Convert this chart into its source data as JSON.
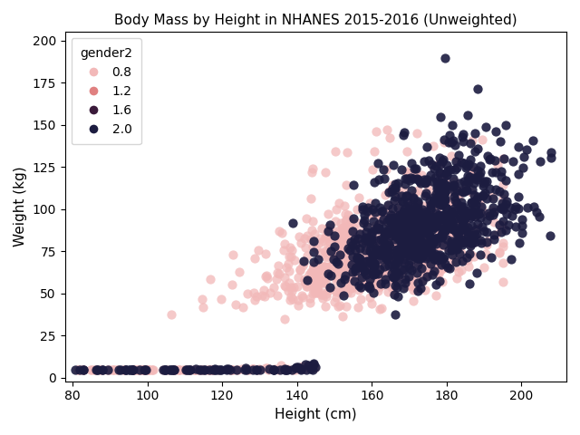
{
  "title": "Body Mass by Height in NHANES 2015-2016 (Unweighted)",
  "xlabel": "Height (cm)",
  "ylabel": "Weight (kg)",
  "xlim": [
    78,
    212
  ],
  "ylim": [
    -2,
    205
  ],
  "xticks": [
    80,
    100,
    120,
    140,
    160,
    180,
    200
  ],
  "yticks": [
    0,
    25,
    50,
    75,
    100,
    125,
    150,
    175,
    200
  ],
  "legend_title": "gender2",
  "legend_labels": [
    "0.8",
    "1.2",
    "1.6",
    "2.0"
  ],
  "color_female": "#f2b8b8",
  "color_male": "#1c1c40",
  "marker_size": 55,
  "alpha_female": 0.75,
  "alpha_male": 0.9,
  "female_n": 800,
  "male_n": 800,
  "seed": 12,
  "background_color": "#ffffff",
  "figsize": [
    6.4,
    4.8
  ],
  "dpi": 100
}
